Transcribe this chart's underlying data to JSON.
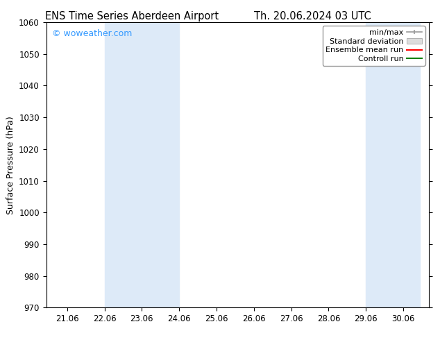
{
  "title_left": "ENS Time Series Aberdeen Airport",
  "title_right": "Th. 20.06.2024 03 UTC",
  "ylabel": "Surface Pressure (hPa)",
  "ylim": [
    970,
    1060
  ],
  "yticks": [
    970,
    980,
    990,
    1000,
    1010,
    1020,
    1030,
    1040,
    1050,
    1060
  ],
  "xlim_start": 20.5,
  "xlim_end": 30.75,
  "xtick_labels": [
    "21.06",
    "22.06",
    "23.06",
    "24.06",
    "25.06",
    "26.06",
    "27.06",
    "28.06",
    "29.06",
    "30.06"
  ],
  "xtick_positions": [
    21.06,
    22.06,
    23.06,
    24.06,
    25.06,
    26.06,
    27.06,
    28.06,
    29.06,
    30.06
  ],
  "shaded_bands": [
    {
      "x_start": 22.06,
      "x_end": 24.06,
      "color": "#ddeaf8"
    },
    {
      "x_start": 29.06,
      "x_end": 30.5,
      "color": "#ddeaf8"
    }
  ],
  "watermark": "© woweather.com",
  "watermark_color": "#3399ff",
  "background_color": "#ffffff",
  "plot_bg_color": "#ffffff",
  "legend_items": [
    {
      "label": "min/max",
      "color": "#aaaaaa",
      "style": "minmax"
    },
    {
      "label": "Standard deviation",
      "color": "#cccccc",
      "style": "stddev"
    },
    {
      "label": "Ensemble mean run",
      "color": "#ff0000",
      "style": "line"
    },
    {
      "label": "Controll run",
      "color": "#008000",
      "style": "line"
    }
  ],
  "title_fontsize": 10.5,
  "axis_fontsize": 9,
  "tick_fontsize": 8.5,
  "legend_fontsize": 8,
  "watermark_fontsize": 9
}
